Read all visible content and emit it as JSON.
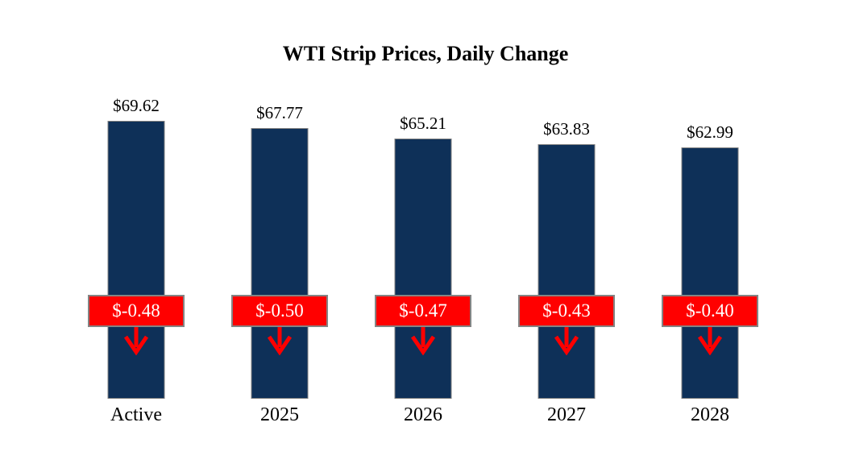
{
  "title": "WTI Strip Prices, Daily Change",
  "chart_data": {
    "type": "bar",
    "title": "WTI Strip Prices, Daily Change",
    "categories": [
      "Active",
      "2025",
      "2026",
      "2027",
      "2028"
    ],
    "values": [
      69.62,
      67.77,
      65.21,
      63.83,
      62.99
    ],
    "series": [
      {
        "name": "WTI Strip Price",
        "values": [
          69.62,
          67.77,
          65.21,
          63.83,
          62.99
        ]
      },
      {
        "name": "Daily Change",
        "values": [
          -0.48,
          -0.5,
          -0.47,
          -0.43,
          -0.4
        ]
      }
    ],
    "price_labels": [
      "$69.62",
      "$67.77",
      "$65.21",
      "$63.83",
      "$62.99"
    ],
    "change_labels": [
      "$-0.48",
      "$-0.50",
      "$-0.47",
      "$-0.43",
      "$-0.40"
    ],
    "xlabel": "",
    "ylabel": "",
    "ylim": [
      0,
      69.62
    ],
    "grid": false,
    "legend": false,
    "colors": {
      "bar_fill": "#0E3058",
      "bar_border": "#808080",
      "badge_fill": "#FF0000",
      "badge_border": "#848484",
      "badge_text": "#FFFFFF",
      "arrow": "#FF0000",
      "text": "#000000",
      "background": "#FFFFFF"
    }
  }
}
